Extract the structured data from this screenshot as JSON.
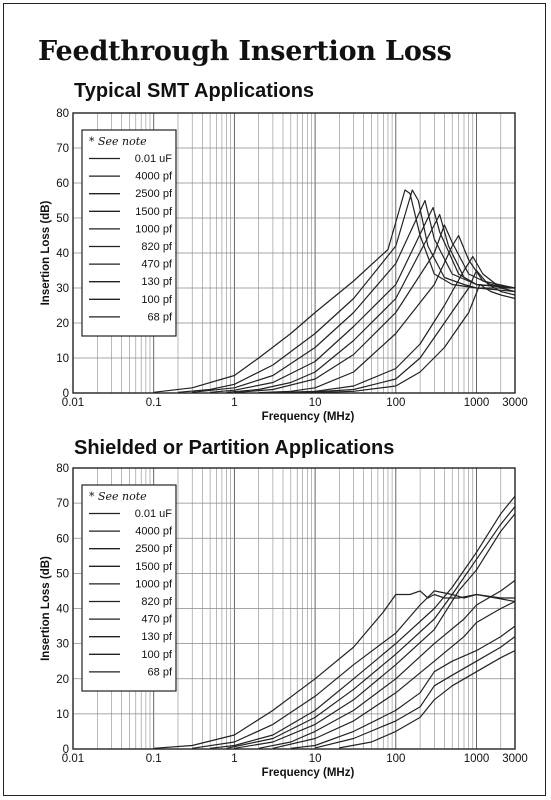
{
  "title": "Feedthrough Insertion Loss",
  "colors": {
    "line": "#222222",
    "grid": "#8a8a8a",
    "frame": "#222222",
    "background": "#ffffff"
  },
  "chart_data": [
    {
      "type": "line",
      "title": "Typical SMT Applications",
      "xlabel": "Frequency (MHz)",
      "ylabel": "Insertion Loss (dB)",
      "xscale": "log",
      "xlim": [
        0.01,
        3000
      ],
      "ylim": [
        0,
        80
      ],
      "xticks": [
        "0.01",
        "0.1",
        "1",
        "10",
        "100",
        "1000",
        "3000"
      ],
      "yticks": [
        "0",
        "10",
        "20",
        "30",
        "40",
        "50",
        "60",
        "70",
        "80"
      ],
      "grid": true,
      "legend_position": "top-left",
      "note": "* See note",
      "series": [
        {
          "name": "0.01 uF",
          "x": [
            0.1,
            0.3,
            1,
            2,
            5,
            10,
            30,
            80,
            130,
            150,
            200,
            300,
            500,
            1000,
            3000
          ],
          "y": [
            0.2,
            1.5,
            5,
            10,
            17,
            23,
            32,
            41,
            58,
            57,
            45,
            34,
            31,
            30,
            30
          ]
        },
        {
          "name": "4000 pf",
          "x": [
            0.2,
            0.5,
            1,
            3,
            10,
            30,
            100,
            160,
            190,
            250,
            400,
            700,
            1000,
            3000
          ],
          "y": [
            0.2,
            1,
            2.5,
            8,
            17,
            27,
            42,
            58,
            55,
            42,
            33,
            31,
            30,
            29
          ]
        },
        {
          "name": "2500 pf",
          "x": [
            0.3,
            1,
            3,
            10,
            30,
            100,
            200,
            230,
            300,
            500,
            1000,
            3000
          ],
          "y": [
            0.2,
            1.5,
            5,
            13,
            23,
            37,
            52,
            55,
            44,
            34,
            31,
            30
          ]
        },
        {
          "name": "1500 pf",
          "x": [
            0.5,
            1,
            3,
            10,
            30,
            100,
            250,
            290,
            350,
            600,
            1000,
            3000
          ],
          "y": [
            0.2,
            0.8,
            3,
            9,
            19,
            31,
            50,
            53,
            46,
            34,
            31,
            30
          ]
        },
        {
          "name": "1000 pf",
          "x": [
            0.8,
            2,
            5,
            10,
            30,
            100,
            300,
            350,
            450,
            700,
            1000,
            3000
          ],
          "y": [
            0.2,
            1,
            3,
            6,
            15,
            27,
            48,
            51,
            42,
            33,
            31,
            30
          ]
        },
        {
          "name": "820 pf",
          "x": [
            1,
            3,
            10,
            30,
            100,
            300,
            400,
            500,
            800,
            1500,
            3000
          ],
          "y": [
            0.1,
            1,
            4,
            11,
            23,
            40,
            48,
            43,
            34,
            31,
            30
          ]
        },
        {
          "name": "470 pf",
          "x": [
            2,
            5,
            10,
            30,
            100,
            300,
            500,
            600,
            800,
            1200,
            3000
          ],
          "y": [
            0.1,
            0.5,
            1.5,
            6,
            17,
            31,
            42,
            45,
            38,
            32,
            30
          ]
        },
        {
          "name": "130 pf",
          "x": [
            3,
            10,
            30,
            100,
            200,
            400,
            700,
            900,
            1200,
            2000,
            3000
          ],
          "y": [
            0.1,
            0.5,
            2,
            7,
            14,
            25,
            35,
            39,
            34,
            30,
            29
          ]
        },
        {
          "name": "100 pf",
          "x": [
            5,
            10,
            30,
            100,
            200,
            400,
            800,
            1000,
            1400,
            2000,
            3000
          ],
          "y": [
            0.1,
            0.3,
            1,
            4,
            10,
            20,
            30,
            35,
            31,
            29,
            28
          ]
        },
        {
          "name": "68 pf",
          "x": [
            10,
            30,
            100,
            200,
            400,
            800,
            1100,
            1500,
            2000,
            3000
          ],
          "y": [
            0.1,
            0.5,
            2,
            6,
            13,
            23,
            31,
            29,
            28,
            27
          ]
        }
      ]
    },
    {
      "type": "line",
      "title": "Shielded or Partition Applications",
      "xlabel": "Frequency (MHz)",
      "ylabel": "Insertion Loss (dB)",
      "xscale": "log",
      "xlim": [
        0.01,
        3000
      ],
      "ylim": [
        0,
        80
      ],
      "xticks": [
        "0.01",
        "0.1",
        "1",
        "10",
        "100",
        "1000",
        "3000"
      ],
      "yticks": [
        "0",
        "10",
        "20",
        "30",
        "40",
        "50",
        "60",
        "70",
        "80"
      ],
      "grid": true,
      "legend_position": "top-left",
      "note": "* See note",
      "series": [
        {
          "name": "0.01 uF",
          "x": [
            0.1,
            0.3,
            1,
            3,
            10,
            30,
            70,
            100,
            150,
            200,
            250,
            300,
            400,
            600,
            1000,
            3000
          ],
          "y": [
            0.2,
            1,
            4,
            11,
            20,
            29,
            39,
            44,
            44,
            45,
            43,
            44,
            43,
            43,
            44,
            42
          ]
        },
        {
          "name": "4000 pf",
          "x": [
            0.3,
            1,
            3,
            10,
            30,
            100,
            200,
            300,
            500,
            700,
            1000,
            2000,
            3000
          ],
          "y": [
            0.2,
            2,
            7,
            15,
            24,
            33,
            41,
            45,
            44,
            43,
            44,
            43,
            43
          ]
        },
        {
          "name": "2500 pf",
          "x": [
            0.5,
            1,
            3,
            10,
            30,
            100,
            300,
            500,
            1000,
            2000,
            3000
          ],
          "y": [
            0.2,
            1,
            4,
            11,
            20,
            30,
            40,
            46,
            56,
            67,
            72
          ]
        },
        {
          "name": "1500 pf",
          "x": [
            0.8,
            3,
            10,
            30,
            100,
            300,
            500,
            1000,
            2000,
            3000
          ],
          "y": [
            0.2,
            3,
            9,
            17,
            27,
            37,
            44,
            54,
            64,
            69
          ]
        },
        {
          "name": "1000 pf",
          "x": [
            1,
            3,
            10,
            30,
            100,
            300,
            600,
            1000,
            2000,
            3000
          ],
          "y": [
            0.2,
            2,
            7,
            14,
            24,
            34,
            45,
            51,
            62,
            67
          ]
        },
        {
          "name": "820 pf",
          "x": [
            2,
            5,
            10,
            30,
            100,
            300,
            700,
            1000,
            2000,
            3000
          ],
          "y": [
            0.2,
            2,
            5,
            11,
            20,
            30,
            37,
            41,
            45,
            48
          ]
        },
        {
          "name": "470 pf",
          "x": [
            3,
            10,
            30,
            100,
            300,
            700,
            1000,
            2000,
            3000
          ],
          "y": [
            0.2,
            3,
            8,
            16,
            25,
            32,
            36,
            40,
            42
          ]
        },
        {
          "name": "130 pf",
          "x": [
            5,
            10,
            30,
            100,
            200,
            300,
            500,
            1000,
            2000,
            3000
          ],
          "y": [
            0.2,
            1,
            5,
            11,
            16,
            22,
            25,
            28,
            32,
            35
          ]
        },
        {
          "name": "100 pf",
          "x": [
            10,
            30,
            100,
            200,
            300,
            500,
            1000,
            2000,
            3000
          ],
          "y": [
            0.3,
            3,
            8,
            12,
            18,
            21,
            25,
            29,
            32
          ]
        },
        {
          "name": "68 pf",
          "x": [
            20,
            50,
            100,
            200,
            300,
            500,
            1000,
            2000,
            3000
          ],
          "y": [
            0.3,
            2,
            5,
            9,
            14,
            18,
            22,
            26,
            28
          ]
        }
      ]
    }
  ]
}
